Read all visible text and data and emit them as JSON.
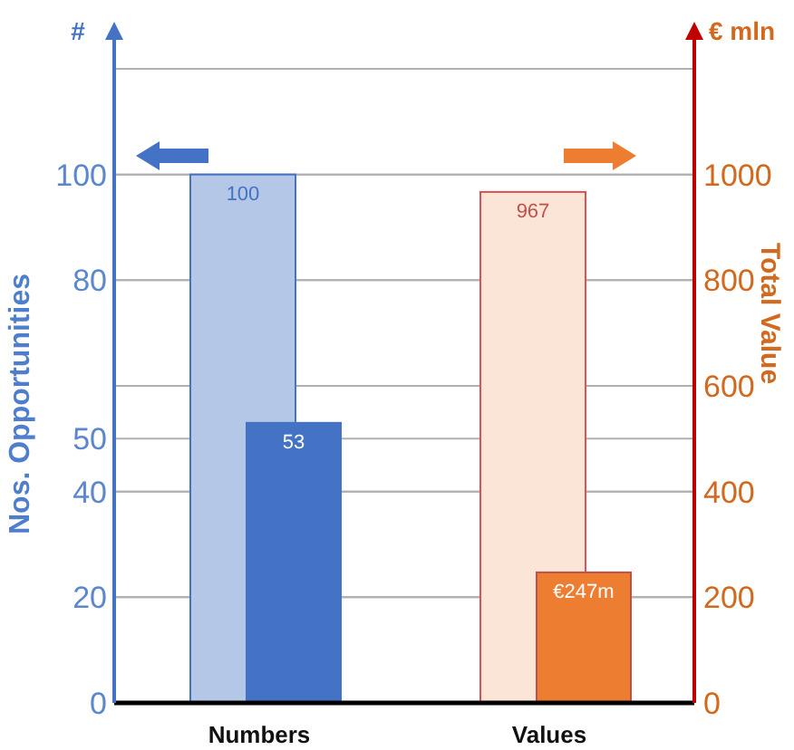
{
  "chart_data": {
    "type": "bar",
    "categories": [
      "Numbers",
      "Values"
    ],
    "ylabel": "Nos. Opportunities",
    "y2label": "Total Value",
    "annotations": [
      "#",
      "€ mln"
    ],
    "series": [
      {
        "color": "#b4c7e7",
        "values": [
          100,
          null
        ],
        "value_labels": [
          "100",
          null
        ]
      },
      {
        "color": "#4472c4",
        "values": [
          53,
          null
        ],
        "value_labels": [
          "53",
          null
        ]
      },
      {
        "color": "#fbe5d6",
        "values": [
          null,
          967
        ],
        "value_labels": [
          null,
          "967"
        ],
        "axis": "y2"
      },
      {
        "color": "#ed7d31",
        "values": [
          null,
          247
        ],
        "value_labels": [
          null,
          "€247m"
        ],
        "axis": "y2"
      }
    ],
    "ylim": [
      0,
      120
    ],
    "yticks": [
      0,
      20,
      40,
      50,
      80,
      100
    ],
    "y2lim": [
      0,
      1200
    ],
    "y2ticks": [
      0,
      200,
      400,
      600,
      800,
      1000,
      {
        "value": 1200,
        "label": null
      }
    ],
    "grid": "y"
  }
}
